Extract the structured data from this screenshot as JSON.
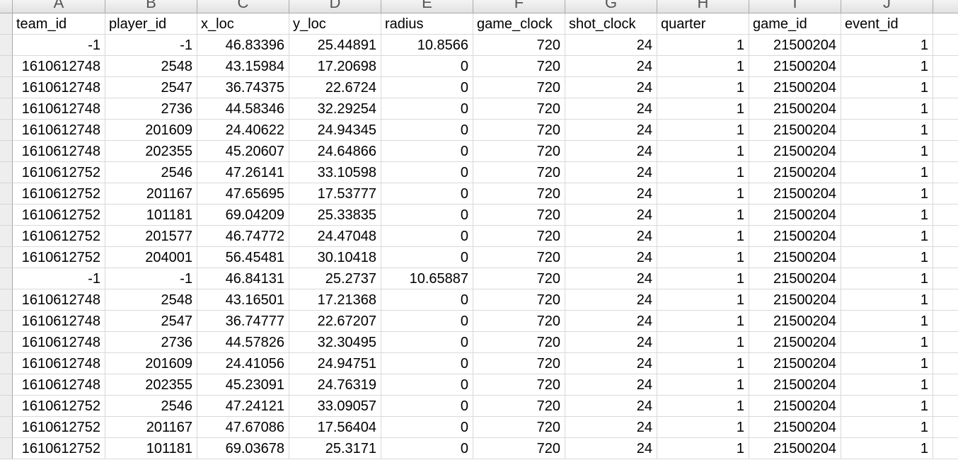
{
  "column_letters": [
    "A",
    "B",
    "C",
    "D",
    "E",
    "F",
    "G",
    "H",
    "I",
    "J"
  ],
  "headers": [
    "team_id",
    "player_id",
    "x_loc",
    "y_loc",
    "radius",
    "game_clock",
    "shot_clock",
    "quarter",
    "game_id",
    "event_id"
  ],
  "rows": [
    [
      "-1",
      "-1",
      "46.83396",
      "25.44891",
      "10.8566",
      "720",
      "24",
      "1",
      "21500204",
      "1"
    ],
    [
      "1610612748",
      "2548",
      "43.15984",
      "17.20698",
      "0",
      "720",
      "24",
      "1",
      "21500204",
      "1"
    ],
    [
      "1610612748",
      "2547",
      "36.74375",
      "22.6724",
      "0",
      "720",
      "24",
      "1",
      "21500204",
      "1"
    ],
    [
      "1610612748",
      "2736",
      "44.58346",
      "32.29254",
      "0",
      "720",
      "24",
      "1",
      "21500204",
      "1"
    ],
    [
      "1610612748",
      "201609",
      "24.40622",
      "24.94345",
      "0",
      "720",
      "24",
      "1",
      "21500204",
      "1"
    ],
    [
      "1610612748",
      "202355",
      "45.20607",
      "24.64866",
      "0",
      "720",
      "24",
      "1",
      "21500204",
      "1"
    ],
    [
      "1610612752",
      "2546",
      "47.26141",
      "33.10598",
      "0",
      "720",
      "24",
      "1",
      "21500204",
      "1"
    ],
    [
      "1610612752",
      "201167",
      "47.65695",
      "17.53777",
      "0",
      "720",
      "24",
      "1",
      "21500204",
      "1"
    ],
    [
      "1610612752",
      "101181",
      "69.04209",
      "25.33835",
      "0",
      "720",
      "24",
      "1",
      "21500204",
      "1"
    ],
    [
      "1610612752",
      "201577",
      "46.74772",
      "24.47048",
      "0",
      "720",
      "24",
      "1",
      "21500204",
      "1"
    ],
    [
      "1610612752",
      "204001",
      "56.45481",
      "30.10418",
      "0",
      "720",
      "24",
      "1",
      "21500204",
      "1"
    ],
    [
      "-1",
      "-1",
      "46.84131",
      "25.2737",
      "10.65887",
      "720",
      "24",
      "1",
      "21500204",
      "1"
    ],
    [
      "1610612748",
      "2548",
      "43.16501",
      "17.21368",
      "0",
      "720",
      "24",
      "1",
      "21500204",
      "1"
    ],
    [
      "1610612748",
      "2547",
      "36.74777",
      "22.67207",
      "0",
      "720",
      "24",
      "1",
      "21500204",
      "1"
    ],
    [
      "1610612748",
      "2736",
      "44.57826",
      "32.30495",
      "0",
      "720",
      "24",
      "1",
      "21500204",
      "1"
    ],
    [
      "1610612748",
      "201609",
      "24.41056",
      "24.94751",
      "0",
      "720",
      "24",
      "1",
      "21500204",
      "1"
    ],
    [
      "1610612748",
      "202355",
      "45.23091",
      "24.76319",
      "0",
      "720",
      "24",
      "1",
      "21500204",
      "1"
    ],
    [
      "1610612752",
      "2546",
      "47.24121",
      "33.09057",
      "0",
      "720",
      "24",
      "1",
      "21500204",
      "1"
    ],
    [
      "1610612752",
      "201167",
      "47.67086",
      "17.56404",
      "0",
      "720",
      "24",
      "1",
      "21500204",
      "1"
    ],
    [
      "1610612752",
      "101181",
      "69.03678",
      "25.3171",
      "0",
      "720",
      "24",
      "1",
      "21500204",
      "1"
    ]
  ]
}
